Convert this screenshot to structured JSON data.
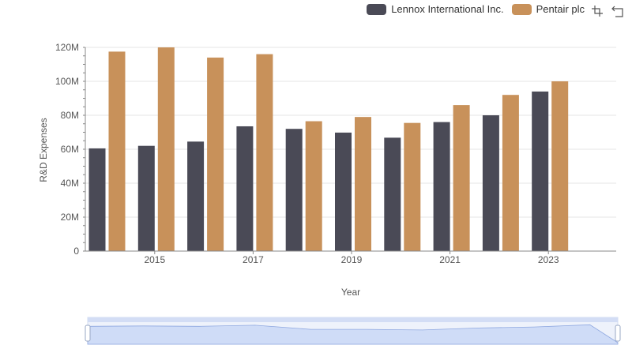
{
  "legend": {
    "items": [
      {
        "label": "Lennox International Inc.",
        "color": "#4a4a56"
      },
      {
        "label": "Pentair plc",
        "color": "#c8915a"
      }
    ]
  },
  "toolbox": {
    "zoom_icon": "zoom-icon",
    "restore_icon": "restore-icon"
  },
  "chart_data": {
    "type": "bar",
    "title": "",
    "xlabel": "Year",
    "ylabel": "R&D Expenses",
    "ylim": [
      0,
      120000000
    ],
    "yticks": [
      "0",
      "20M",
      "40M",
      "60M",
      "80M",
      "100M",
      "120M"
    ],
    "xticks": [
      "2015",
      "2017",
      "2019",
      "2021",
      "2023"
    ],
    "categories": [
      "2014",
      "2015",
      "2016",
      "2017",
      "2018",
      "2019",
      "2020",
      "2021",
      "2022",
      "2023"
    ],
    "grid": true,
    "legend_position": "top-right",
    "series": [
      {
        "name": "Lennox International Inc.",
        "color": "#4a4a56",
        "values": [
          60500000,
          62000000,
          64500000,
          73500000,
          72000000,
          69800000,
          66800000,
          76000000,
          80000000,
          94000000
        ]
      },
      {
        "name": "Pentair plc",
        "color": "#c8915a",
        "values": [
          117500000,
          120000000,
          114000000,
          116000000,
          76500000,
          79000000,
          75500000,
          86000000,
          92000000,
          100000000
        ]
      }
    ]
  }
}
